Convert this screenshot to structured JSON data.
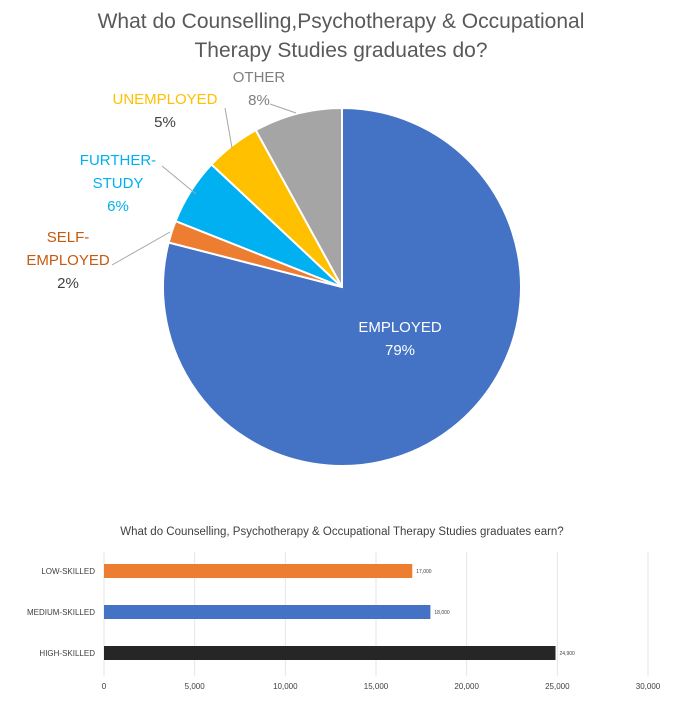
{
  "chart_data": [
    {
      "type": "pie",
      "title_lines": [
        "What do Counselling,Psychotherapy & Occupational",
        "Therapy Studies graduates do?"
      ],
      "slices": [
        {
          "label_lines": [
            "EMPLOYED"
          ],
          "value": 79,
          "value_label": "79%",
          "color": "#4472C4",
          "label_color": "#FFFFFF",
          "value_color": "#FFFFFF"
        },
        {
          "label_lines": [
            "SELF-",
            "EMPLOYED"
          ],
          "value": 2,
          "value_label": "2%",
          "color": "#ED7D31",
          "label_color": "#C55A11",
          "value_color": "#404040"
        },
        {
          "label_lines": [
            "FURTHER-",
            "STUDY"
          ],
          "value": 6,
          "value_label": "6%",
          "color": "#00B0F0",
          "label_color": "#00B0F0",
          "value_color": "#00B0F0"
        },
        {
          "label_lines": [
            "UNEMPLOYED"
          ],
          "value": 5,
          "value_label": "5%",
          "color": "#FFC000",
          "label_color": "#FFC000",
          "value_color": "#404040"
        },
        {
          "label_lines": [
            "OTHER"
          ],
          "value": 8,
          "value_label": "8%",
          "color": "#A5A5A5",
          "label_color": "#7F7F7F",
          "value_color": "#7F7F7F"
        }
      ]
    },
    {
      "type": "bar",
      "orientation": "horizontal",
      "title": "What do Counselling, Psychotherapy & Occupational Therapy Studies graduates earn?",
      "categories": [
        "LOW-SKILLED",
        "MEDIUM-SKILLED",
        "HIGH-SKILLED"
      ],
      "values": [
        17000,
        18000,
        24900
      ],
      "value_labels": [
        "17,000",
        "18,000",
        "24,900"
      ],
      "colors": [
        "#ED7D31",
        "#4472C4",
        "#262626"
      ],
      "xlim": [
        0,
        30000
      ],
      "xticks": [
        0,
        5000,
        10000,
        15000,
        20000,
        25000,
        30000
      ],
      "xtick_labels": [
        "0",
        "5,000",
        "10,000",
        "15,000",
        "20,000",
        "25,000",
        "30,000"
      ],
      "grid": true
    }
  ]
}
